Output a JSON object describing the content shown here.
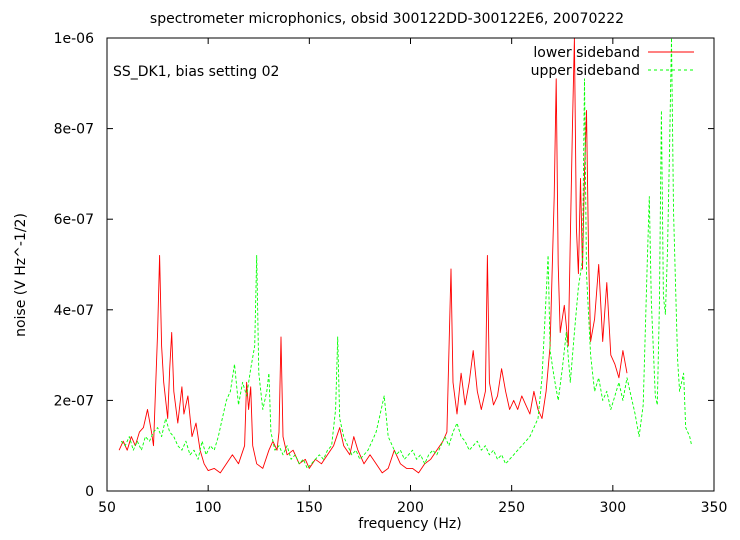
{
  "chart_data": {
    "type": "line",
    "title": "spectrometer microphonics, obsid 300122DD-300122E6, 20070222",
    "annotation": "SS_DK1, bias setting 02",
    "xlabel": "frequency (Hz)",
    "ylabel": "noise (V Hz^-1/2)",
    "xlim": [
      50,
      350
    ],
    "ylim": [
      0,
      1e-06
    ],
    "xticks": [
      50,
      100,
      150,
      200,
      250,
      300,
      350
    ],
    "xtick_labels": [
      "50",
      "100",
      "150",
      "200",
      "250",
      "300",
      "350"
    ],
    "yticks": [
      0,
      2e-07,
      4e-07,
      6e-07,
      8e-07,
      1e-06
    ],
    "ytick_labels": [
      "0",
      "2e-07",
      "4e-07",
      "6e-07",
      "8e-07",
      "1e-06"
    ],
    "grid": false,
    "legend_position": "top-right",
    "series": [
      {
        "name": "lower sideband",
        "color": "#ff0000",
        "style": "solid",
        "points": [
          [
            56,
            9e-08
          ],
          [
            58,
            1.1e-07
          ],
          [
            60,
            9e-08
          ],
          [
            62,
            1.2e-07
          ],
          [
            64,
            1e-07
          ],
          [
            66,
            1.3e-07
          ],
          [
            68,
            1.4e-07
          ],
          [
            70,
            1.8e-07
          ],
          [
            72,
            1.3e-07
          ],
          [
            73,
            1e-07
          ],
          [
            75,
            3.5e-07
          ],
          [
            76,
            5.2e-07
          ],
          [
            77,
            3.2e-07
          ],
          [
            78,
            2.4e-07
          ],
          [
            79,
            2e-07
          ],
          [
            80,
            1.6e-07
          ],
          [
            81,
            2.7e-07
          ],
          [
            82,
            3.5e-07
          ],
          [
            83,
            2.2e-07
          ],
          [
            85,
            1.5e-07
          ],
          [
            87,
            2.3e-07
          ],
          [
            88,
            1.7e-07
          ],
          [
            90,
            2.1e-07
          ],
          [
            92,
            1.2e-07
          ],
          [
            94,
            1.5e-07
          ],
          [
            96,
            9e-08
          ],
          [
            98,
            6e-08
          ],
          [
            100,
            4.5e-08
          ],
          [
            103,
            5e-08
          ],
          [
            106,
            4e-08
          ],
          [
            109,
            6e-08
          ],
          [
            112,
            8e-08
          ],
          [
            115,
            6e-08
          ],
          [
            118,
            1e-07
          ],
          [
            119,
            2.4e-07
          ],
          [
            120,
            1.8e-07
          ],
          [
            121,
            2.3e-07
          ],
          [
            122,
            1e-07
          ],
          [
            124,
            6e-08
          ],
          [
            127,
            5e-08
          ],
          [
            130,
            9e-08
          ],
          [
            132,
            1.1e-07
          ],
          [
            134,
            9e-08
          ],
          [
            135,
            1.3e-07
          ],
          [
            136,
            3.4e-07
          ],
          [
            137,
            1.2e-07
          ],
          [
            139,
            8e-08
          ],
          [
            142,
            9e-08
          ],
          [
            145,
            6e-08
          ],
          [
            148,
            7e-08
          ],
          [
            150,
            5e-08
          ],
          [
            153,
            7e-08
          ],
          [
            156,
            6e-08
          ],
          [
            159,
            8e-08
          ],
          [
            162,
            1e-07
          ],
          [
            165,
            1.4e-07
          ],
          [
            167,
            1e-07
          ],
          [
            170,
            8e-08
          ],
          [
            172,
            1.2e-07
          ],
          [
            174,
            9e-08
          ],
          [
            177,
            6e-08
          ],
          [
            180,
            8e-08
          ],
          [
            183,
            6e-08
          ],
          [
            186,
            4e-08
          ],
          [
            189,
            5e-08
          ],
          [
            192,
            9e-08
          ],
          [
            195,
            6e-08
          ],
          [
            198,
            5e-08
          ],
          [
            201,
            5e-08
          ],
          [
            204,
            4e-08
          ],
          [
            207,
            6e-08
          ],
          [
            210,
            7e-08
          ],
          [
            213,
            9e-08
          ],
          [
            216,
            1.1e-07
          ],
          [
            218,
            1.3e-07
          ],
          [
            220,
            4.9e-07
          ],
          [
            221,
            2.4e-07
          ],
          [
            223,
            1.7e-07
          ],
          [
            225,
            2.6e-07
          ],
          [
            227,
            1.9e-07
          ],
          [
            229,
            2.4e-07
          ],
          [
            231,
            3.1e-07
          ],
          [
            233,
            2.2e-07
          ],
          [
            235,
            1.8e-07
          ],
          [
            237,
            2.2e-07
          ],
          [
            238,
            5.2e-07
          ],
          [
            239,
            2.4e-07
          ],
          [
            241,
            1.9e-07
          ],
          [
            243,
            2.1e-07
          ],
          [
            245,
            2.7e-07
          ],
          [
            247,
            2.2e-07
          ],
          [
            249,
            1.8e-07
          ],
          [
            251,
            2e-07
          ],
          [
            253,
            1.8e-07
          ],
          [
            255,
            2.1e-07
          ],
          [
            257,
            1.9e-07
          ],
          [
            259,
            1.7e-07
          ],
          [
            261,
            2.2e-07
          ],
          [
            263,
            1.8e-07
          ],
          [
            265,
            1.6e-07
          ],
          [
            267,
            2.2e-07
          ],
          [
            269,
            3.2e-07
          ],
          [
            271,
            6.5e-07
          ],
          [
            272,
            9.1e-07
          ],
          [
            273,
            5e-07
          ],
          [
            274,
            3.5e-07
          ],
          [
            276,
            4.1e-07
          ],
          [
            278,
            3.2e-07
          ],
          [
            280,
            8e-07
          ],
          [
            281,
            1e-06
          ],
          [
            282,
            5.8e-07
          ],
          [
            283,
            4.8e-07
          ],
          [
            284,
            6.9e-07
          ],
          [
            285,
            4.9e-07
          ],
          [
            286,
            7e-07
          ],
          [
            287,
            8.4e-07
          ],
          [
            288,
            5.2e-07
          ],
          [
            289,
            3.3e-07
          ],
          [
            291,
            3.8e-07
          ],
          [
            293,
            5e-07
          ],
          [
            295,
            3.3e-07
          ],
          [
            297,
            4.6e-07
          ],
          [
            299,
            3e-07
          ],
          [
            301,
            2.8e-07
          ],
          [
            303,
            2.5e-07
          ],
          [
            305,
            3.1e-07
          ],
          [
            307,
            2.6e-07
          ]
        ]
      },
      {
        "name": "upper sideband",
        "color": "#00ff00",
        "style": "dashed",
        "points": [
          [
            57,
            1.1e-07
          ],
          [
            59,
            1e-07
          ],
          [
            61,
            1.2e-07
          ],
          [
            63,
            9e-08
          ],
          [
            65,
            1.1e-07
          ],
          [
            67,
            9e-08
          ],
          [
            69,
            1.2e-07
          ],
          [
            71,
            1.1e-07
          ],
          [
            73,
            1.3e-07
          ],
          [
            75,
            1.4e-07
          ],
          [
            77,
            1.2e-07
          ],
          [
            79,
            1.6e-07
          ],
          [
            81,
            1.3e-07
          ],
          [
            83,
            1.2e-07
          ],
          [
            85,
            1e-07
          ],
          [
            87,
            9e-08
          ],
          [
            89,
            1.1e-07
          ],
          [
            91,
            8e-08
          ],
          [
            93,
            9e-08
          ],
          [
            95,
            7e-08
          ],
          [
            97,
            1.1e-07
          ],
          [
            99,
            8e-08
          ],
          [
            101,
            1e-07
          ],
          [
            103,
            9e-08
          ],
          [
            105,
            1.2e-07
          ],
          [
            107,
            1.6e-07
          ],
          [
            109,
            2e-07
          ],
          [
            111,
            2.2e-07
          ],
          [
            113,
            2.8e-07
          ],
          [
            115,
            1.9e-07
          ],
          [
            117,
            2.4e-07
          ],
          [
            119,
            2.1e-07
          ],
          [
            121,
            2.7e-07
          ],
          [
            123,
            3.2e-07
          ],
          [
            124,
            5.2e-07
          ],
          [
            125,
            2.6e-07
          ],
          [
            127,
            1.8e-07
          ],
          [
            129,
            2.2e-07
          ],
          [
            130,
            2.6e-07
          ],
          [
            131,
            1.3e-07
          ],
          [
            133,
            9e-08
          ],
          [
            135,
            1e-07
          ],
          [
            137,
            8e-08
          ],
          [
            139,
            1e-07
          ],
          [
            141,
            7e-08
          ],
          [
            143,
            8e-08
          ],
          [
            145,
            6e-08
          ],
          [
            147,
            7e-08
          ],
          [
            149,
            5e-08
          ],
          [
            151,
            6e-08
          ],
          [
            153,
            7e-08
          ],
          [
            155,
            8e-08
          ],
          [
            157,
            7e-08
          ],
          [
            159,
            9e-08
          ],
          [
            161,
            1e-07
          ],
          [
            163,
            1.8e-07
          ],
          [
            164,
            3.4e-07
          ],
          [
            165,
            1.6e-07
          ],
          [
            167,
            1.2e-07
          ],
          [
            169,
            1e-07
          ],
          [
            171,
            8e-08
          ],
          [
            173,
            9e-08
          ],
          [
            175,
            7e-08
          ],
          [
            177,
            8e-08
          ],
          [
            179,
            9e-08
          ],
          [
            181,
            1.1e-07
          ],
          [
            183,
            1.3e-07
          ],
          [
            185,
            1.7e-07
          ],
          [
            187,
            2.1e-07
          ],
          [
            189,
            1.2e-07
          ],
          [
            191,
            1e-07
          ],
          [
            193,
            8e-08
          ],
          [
            195,
            9e-08
          ],
          [
            197,
            7e-08
          ],
          [
            199,
            8e-08
          ],
          [
            201,
            9e-08
          ],
          [
            203,
            7e-08
          ],
          [
            205,
            8e-08
          ],
          [
            207,
            6e-08
          ],
          [
            209,
            8e-08
          ],
          [
            211,
            9e-08
          ],
          [
            213,
            8e-08
          ],
          [
            215,
            1e-07
          ],
          [
            217,
            1.2e-07
          ],
          [
            219,
            1e-07
          ],
          [
            221,
            1.3e-07
          ],
          [
            223,
            1.5e-07
          ],
          [
            225,
            1.2e-07
          ],
          [
            227,
            1.1e-07
          ],
          [
            229,
            9e-08
          ],
          [
            231,
            1e-07
          ],
          [
            233,
            1.1e-07
          ],
          [
            235,
            9e-08
          ],
          [
            237,
            1e-07
          ],
          [
            239,
            8e-08
          ],
          [
            241,
            9e-08
          ],
          [
            243,
            7e-08
          ],
          [
            245,
            8e-08
          ],
          [
            247,
            6e-08
          ],
          [
            249,
            7e-08
          ],
          [
            251,
            8e-08
          ],
          [
            253,
            9e-08
          ],
          [
            255,
            1e-07
          ],
          [
            257,
            1.1e-07
          ],
          [
            259,
            1.2e-07
          ],
          [
            261,
            1.4e-07
          ],
          [
            263,
            1.6e-07
          ],
          [
            265,
            2.5e-07
          ],
          [
            267,
            4.3e-07
          ],
          [
            268,
            5.2e-07
          ],
          [
            269,
            3.1e-07
          ],
          [
            271,
            2.5e-07
          ],
          [
            273,
            2e-07
          ],
          [
            275,
            2.7e-07
          ],
          [
            277,
            3.5e-07
          ],
          [
            279,
            2.4e-07
          ],
          [
            281,
            3.5e-07
          ],
          [
            283,
            4.5e-07
          ],
          [
            285,
            5.1e-07
          ],
          [
            286,
            9.1e-07
          ],
          [
            287,
            4.8e-07
          ],
          [
            289,
            3e-07
          ],
          [
            291,
            2.2e-07
          ],
          [
            293,
            2.5e-07
          ],
          [
            295,
            2e-07
          ],
          [
            297,
            2.2e-07
          ],
          [
            299,
            1.8e-07
          ],
          [
            301,
            2.1e-07
          ],
          [
            303,
            2.4e-07
          ],
          [
            305,
            2e-07
          ],
          [
            307,
            2.5e-07
          ],
          [
            309,
            2.1e-07
          ],
          [
            311,
            1.7e-07
          ],
          [
            313,
            1.2e-07
          ],
          [
            315,
            1.9e-07
          ],
          [
            317,
            5e-07
          ],
          [
            318,
            6.5e-07
          ],
          [
            319,
            4.2e-07
          ],
          [
            321,
            2.1e-07
          ],
          [
            322,
            1.9e-07
          ],
          [
            323,
            4.1e-07
          ],
          [
            324,
            8.4e-07
          ],
          [
            325,
            4.3e-07
          ],
          [
            326,
            3.9e-07
          ],
          [
            327,
            5.3e-07
          ],
          [
            328,
            7.5e-07
          ],
          [
            329,
            1e-06
          ],
          [
            330,
            6.2e-07
          ],
          [
            331,
            4.5e-07
          ],
          [
            332,
            2.9e-07
          ],
          [
            333,
            2.2e-07
          ],
          [
            335,
            2.6e-07
          ],
          [
            336,
            1.4e-07
          ],
          [
            338,
            1.2e-07
          ],
          [
            339,
            1e-07
          ]
        ]
      }
    ]
  }
}
